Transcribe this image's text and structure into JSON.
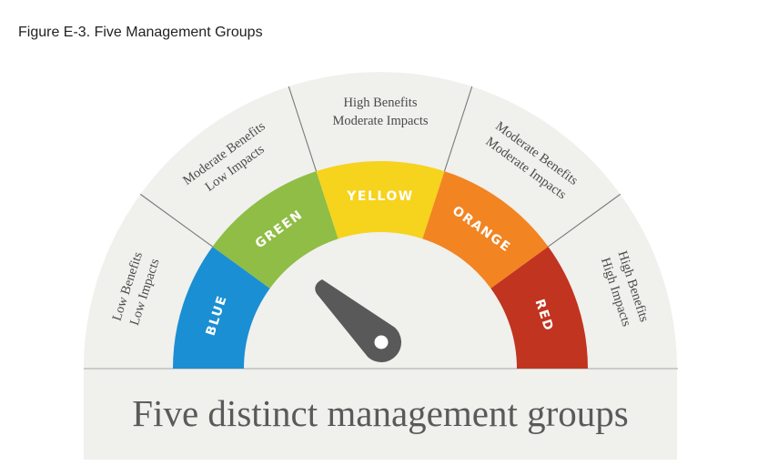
{
  "caption": "Figure E-3. Five Management Groups",
  "groups": [
    {
      "label": "BLUE",
      "color": "#1a8fd3",
      "outer": [
        "Low Benefits",
        "Low Impacts"
      ]
    },
    {
      "label": "GREEN",
      "color": "#8fbd45",
      "outer": [
        "Moderate Benefits",
        "Low Impacts"
      ]
    },
    {
      "label": "YELLOW",
      "color": "#f6d31d",
      "outer": [
        "High Benefits",
        "Moderate Impacts"
      ]
    },
    {
      "label": "ORANGE",
      "color": "#f28422",
      "outer": [
        "Moderate Benefits",
        "Moderate Impacts"
      ]
    },
    {
      "label": "RED",
      "color": "#c1341f",
      "outer": [
        "High Benefits",
        "High Impacts"
      ]
    }
  ],
  "footer": "Five distinct management groups",
  "panel_color": "#f0f0ed",
  "needle_color": "#595959"
}
